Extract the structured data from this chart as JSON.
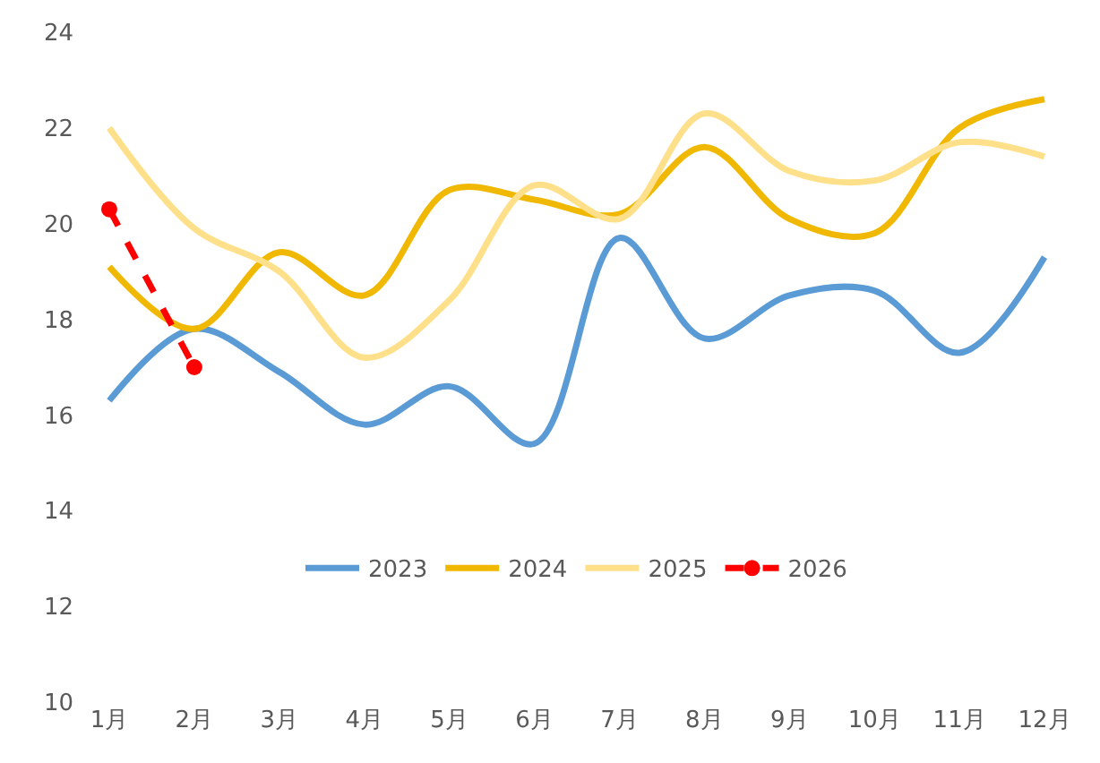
{
  "chart_data": {
    "type": "line",
    "categories": [
      "1月",
      "2月",
      "3月",
      "4月",
      "5月",
      "6月",
      "7月",
      "8月",
      "9月",
      "10月",
      "11月",
      "12月"
    ],
    "ylim": [
      10,
      24
    ],
    "yticks": [
      10,
      12,
      14,
      16,
      18,
      20,
      22,
      24
    ],
    "legend": "bottom",
    "marker": "none",
    "line_style": "solid",
    "series": [
      {
        "name": "2023",
        "color": "#5b9bd5",
        "values": [
          16.3,
          17.8,
          16.9,
          15.8,
          16.6,
          15.4,
          19.7,
          17.6,
          18.5,
          18.6,
          17.3,
          19.3
        ]
      },
      {
        "name": "2024",
        "color": "#f0b800",
        "values": [
          19.1,
          17.8,
          19.4,
          18.5,
          20.7,
          20.5,
          20.2,
          21.6,
          20.1,
          19.8,
          22.0,
          22.6
        ]
      },
      {
        "name": "2025",
        "color": "#ffe08a",
        "values": [
          22.0,
          19.9,
          19.0,
          17.2,
          18.4,
          20.8,
          20.1,
          22.3,
          21.1,
          20.9,
          21.7,
          21.4
        ]
      },
      {
        "name": "2026",
        "color": "#ff0000",
        "values": [
          20.3,
          17.0,
          null,
          null,
          null,
          null,
          null,
          null,
          null,
          null,
          null,
          null
        ],
        "marker": "circle",
        "line_style": "dashed"
      }
    ]
  }
}
